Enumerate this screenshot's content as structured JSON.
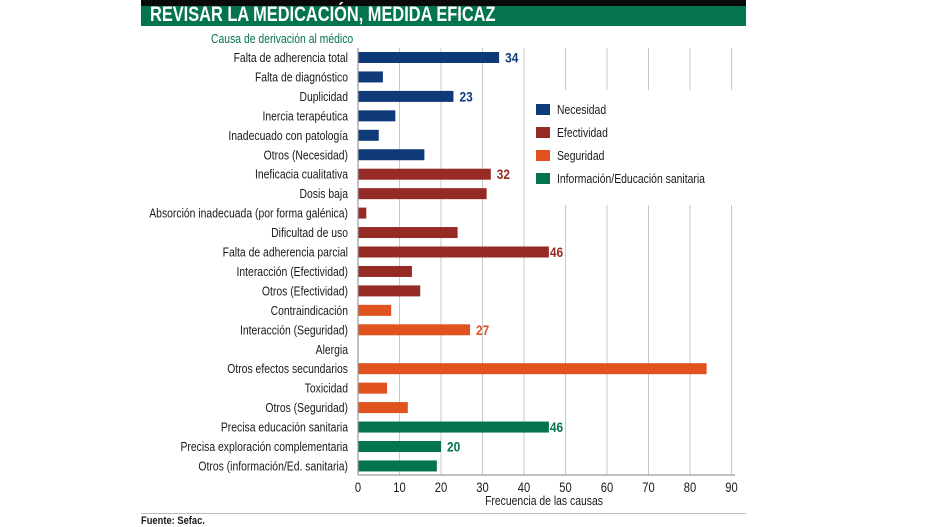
{
  "header": {
    "title": "REVISAR LA MEDICACIÓN, MEDIDA EFICAZ",
    "subtitle": "Causa de derivación al médico"
  },
  "footer": {
    "source": "Fuente: Sefac."
  },
  "colors": {
    "Necesidad": "#0f3a7a",
    "Efectividad": "#962a25",
    "Seguridad": "#e0521e",
    "Información/Educación sanitaria": "#047350",
    "header_green": "#047350",
    "gridline": "#c8c8c8"
  },
  "chart_data": {
    "type": "bar",
    "orientation": "horizontal",
    "title": "REVISAR LA MEDICACIÓN, MEDIDA EFICAZ",
    "subtitle": "Causa de derivación al médico",
    "xlabel": "Frecuencia de las causas",
    "ylabel": "",
    "xlim": [
      0,
      90
    ],
    "xticks": [
      0,
      10,
      20,
      30,
      40,
      50,
      60,
      70,
      80,
      90
    ],
    "grid": true,
    "legend_position": "top-right",
    "legend": [
      "Necesidad",
      "Efectividad",
      "Seguridad",
      "Información/Educación sanitaria"
    ],
    "categories": [
      "Falta de adherencia total",
      "Falta de diagnóstico",
      "Duplicidad",
      "Inercia terapéutica",
      "Inadecuado con patología",
      "Otros (Necesidad)",
      "Ineficacia cualitativa",
      "Dosis baja",
      "Absorción inadecuada (por forma galénica)",
      "Dificultad de uso",
      "Falta de adherencia parcial",
      "Interacción (Efectividad)",
      "Otros (Efectividad)",
      "Contraindicación",
      "Interacción (Seguridad)",
      "Alergia",
      "Otros efectos secundarios",
      "Toxicidad",
      "Otros (Seguridad)",
      "Precisa educación sanitaria",
      "Precisa exploración complementaria",
      "Otros (información/Ed. sanitaria)"
    ],
    "values": [
      34,
      6,
      23,
      9,
      5,
      16,
      32,
      31,
      2,
      24,
      46,
      13,
      15,
      8,
      27,
      0,
      84,
      7,
      12,
      46,
      20,
      19
    ],
    "groups": [
      "Necesidad",
      "Necesidad",
      "Necesidad",
      "Necesidad",
      "Necesidad",
      "Necesidad",
      "Efectividad",
      "Efectividad",
      "Efectividad",
      "Efectividad",
      "Efectividad",
      "Efectividad",
      "Efectividad",
      "Seguridad",
      "Seguridad",
      "Seguridad",
      "Seguridad",
      "Seguridad",
      "Seguridad",
      "Información/Educación sanitaria",
      "Información/Educación sanitaria",
      "Información/Educación sanitaria"
    ],
    "data_labels": [
      {
        "category": "Falta de adherencia total",
        "text": "34"
      },
      {
        "category": "Duplicidad",
        "text": "23"
      },
      {
        "category": "Ineficacia cualitativa",
        "text": "32"
      },
      {
        "category": "Falta de adherencia parcial",
        "text": "46"
      },
      {
        "category": "Interacción (Seguridad)",
        "text": "27"
      },
      {
        "category": "Precisa educación sanitaria",
        "text": "46"
      },
      {
        "category": "Precisa exploración complementaria",
        "text": "20"
      }
    ]
  }
}
